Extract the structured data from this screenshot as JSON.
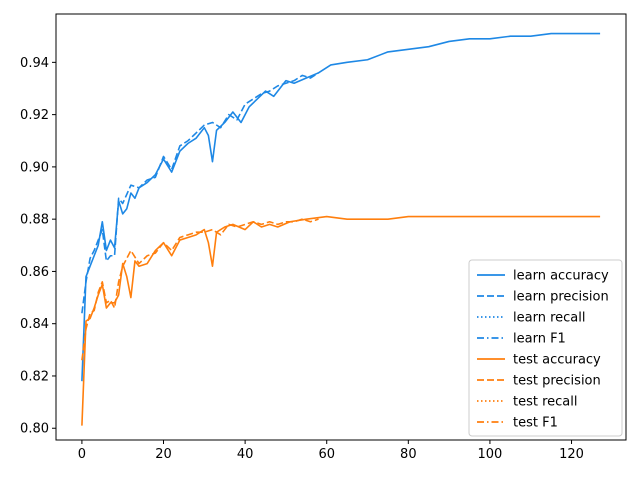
{
  "chart_data": {
    "type": "line",
    "title": "",
    "xlabel": "",
    "ylabel": "",
    "xlim": [
      -6.35,
      133.35
    ],
    "ylim": [
      0.7955,
      0.9585
    ],
    "grid": false,
    "legend_position": "lower-right",
    "x_ticks": [
      0,
      20,
      40,
      60,
      80,
      100,
      120
    ],
    "x_tick_labels": [
      "0",
      "20",
      "40",
      "60",
      "80",
      "100",
      "120"
    ],
    "y_ticks": [
      0.8,
      0.82,
      0.84,
      0.86,
      0.88,
      0.9,
      0.92,
      0.94
    ],
    "y_tick_labels": [
      "0.80",
      "0.82",
      "0.84",
      "0.86",
      "0.88",
      "0.90",
      "0.92",
      "0.94"
    ],
    "colors": {
      "learn": "#1f77b4",
      "learn_bright": "#1e88e5",
      "test": "#ff7f0e"
    },
    "series": [
      {
        "name": "learn accuracy",
        "color": "#1e88e5",
        "dash": "solid",
        "x": [
          0,
          1,
          2,
          3,
          4,
          5,
          6,
          7,
          8,
          9,
          10,
          11,
          12,
          13,
          14,
          16,
          18,
          20,
          22,
          24,
          26,
          28,
          30,
          31,
          32,
          33,
          35,
          37,
          39,
          41,
          43,
          45,
          47,
          50,
          52,
          55,
          58,
          61,
          65,
          70,
          75,
          80,
          85,
          90,
          95,
          100,
          105,
          110,
          115,
          120,
          125,
          127
        ],
        "values": [
          0.818,
          0.858,
          0.862,
          0.866,
          0.87,
          0.879,
          0.868,
          0.872,
          0.869,
          0.887,
          0.882,
          0.884,
          0.89,
          0.888,
          0.892,
          0.894,
          0.897,
          0.903,
          0.898,
          0.906,
          0.909,
          0.911,
          0.915,
          0.912,
          0.902,
          0.914,
          0.917,
          0.921,
          0.917,
          0.923,
          0.926,
          0.929,
          0.927,
          0.933,
          0.932,
          0.934,
          0.936,
          0.939,
          0.94,
          0.941,
          0.944,
          0.945,
          0.946,
          0.948,
          0.949,
          0.949,
          0.95,
          0.95,
          0.951,
          0.951,
          0.951,
          0.951
        ]
      },
      {
        "name": "learn precision",
        "color": "#1e88e5",
        "dash": "dashed",
        "x": [
          0,
          1,
          2,
          3,
          4,
          5,
          6,
          7,
          8,
          9,
          10,
          12,
          14,
          16,
          18,
          20,
          22,
          24,
          26,
          28,
          30,
          32,
          34,
          36,
          38,
          40,
          42,
          44,
          46,
          48,
          50,
          52,
          54,
          56,
          58
        ],
        "values": [
          0.844,
          0.856,
          0.865,
          0.868,
          0.872,
          0.876,
          0.864,
          0.866,
          0.866,
          0.888,
          0.886,
          0.893,
          0.892,
          0.895,
          0.896,
          0.904,
          0.899,
          0.908,
          0.91,
          0.913,
          0.916,
          0.917,
          0.915,
          0.92,
          0.918,
          0.924,
          0.926,
          0.928,
          0.929,
          0.931,
          0.932,
          0.933,
          0.935,
          0.934,
          0.936
        ]
      },
      {
        "name": "learn recall",
        "color": "#1e88e5",
        "dash": "dotted",
        "x": [],
        "values": []
      },
      {
        "name": "learn F1",
        "color": "#1e88e5",
        "dash": "dashdot",
        "x": [],
        "values": []
      },
      {
        "name": "test accuracy",
        "color": "#ff7f0e",
        "dash": "solid",
        "x": [
          0,
          1,
          2,
          3,
          4,
          5,
          6,
          7,
          8,
          9,
          10,
          11,
          12,
          13,
          14,
          16,
          18,
          20,
          22,
          24,
          26,
          28,
          30,
          31,
          32,
          33,
          35,
          37,
          40,
          42,
          44,
          46,
          48,
          51,
          55,
          60,
          65,
          70,
          75,
          80,
          85,
          90,
          95,
          100,
          105,
          110,
          115,
          120,
          125,
          127
        ],
        "values": [
          0.801,
          0.841,
          0.842,
          0.846,
          0.851,
          0.855,
          0.846,
          0.848,
          0.848,
          0.851,
          0.863,
          0.858,
          0.85,
          0.864,
          0.862,
          0.863,
          0.868,
          0.871,
          0.866,
          0.872,
          0.873,
          0.874,
          0.876,
          0.871,
          0.862,
          0.875,
          0.877,
          0.878,
          0.876,
          0.879,
          0.877,
          0.878,
          0.877,
          0.879,
          0.88,
          0.881,
          0.88,
          0.88,
          0.88,
          0.881,
          0.881,
          0.881,
          0.881,
          0.881,
          0.881,
          0.881,
          0.881,
          0.881,
          0.881,
          0.881
        ]
      },
      {
        "name": "test precision",
        "color": "#ff7f0e",
        "dash": "dashed",
        "x": [
          0,
          1,
          2,
          3,
          4,
          5,
          6,
          7,
          8,
          9,
          10,
          12,
          14,
          16,
          18,
          20,
          22,
          24,
          26,
          28,
          30,
          32,
          34,
          36,
          38,
          40,
          42,
          44,
          46,
          48,
          50,
          52,
          54,
          56,
          58
        ],
        "values": [
          0.826,
          0.838,
          0.844,
          0.845,
          0.852,
          0.856,
          0.848,
          0.849,
          0.846,
          0.856,
          0.862,
          0.868,
          0.863,
          0.866,
          0.867,
          0.871,
          0.868,
          0.873,
          0.874,
          0.875,
          0.875,
          0.876,
          0.874,
          0.878,
          0.877,
          0.878,
          0.879,
          0.878,
          0.879,
          0.878,
          0.879,
          0.879,
          0.88,
          0.879,
          0.88
        ]
      },
      {
        "name": "test recall",
        "color": "#ff7f0e",
        "dash": "dotted",
        "x": [],
        "values": []
      },
      {
        "name": "test F1",
        "color": "#ff7f0e",
        "dash": "dashdot",
        "x": [],
        "values": []
      }
    ]
  }
}
